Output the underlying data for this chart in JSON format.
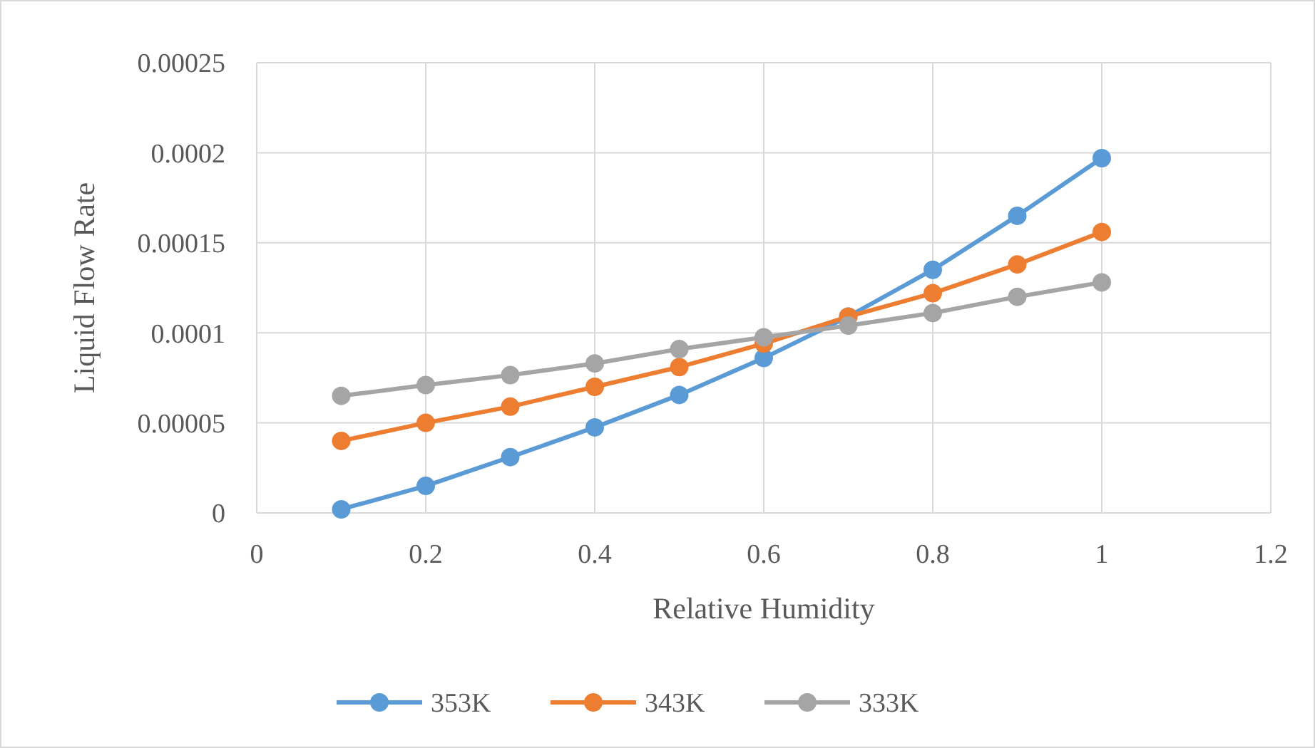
{
  "chart_data": {
    "type": "line",
    "xlabel": "Relative Humidity",
    "ylabel": "Liquid Flow Rate",
    "x": [
      0.1,
      0.2,
      0.3,
      0.4,
      0.5,
      0.6,
      0.7,
      0.8,
      0.9,
      1.0
    ],
    "series": [
      {
        "name": "353K",
        "color": "#5b9bd5",
        "values": [
          2e-06,
          1.5e-05,
          3.1e-05,
          4.75e-05,
          6.55e-05,
          8.6e-05,
          0.000109,
          0.000135,
          0.000165,
          0.000197
        ]
      },
      {
        "name": "343K",
        "color": "#ed7d31",
        "values": [
          4e-05,
          5e-05,
          5.9e-05,
          7e-05,
          8.1e-05,
          9.4e-05,
          0.000109,
          0.000122,
          0.000138,
          0.000156
        ]
      },
      {
        "name": "333K",
        "color": "#a5a5a5",
        "values": [
          6.5e-05,
          7.1e-05,
          7.65e-05,
          8.3e-05,
          9.1e-05,
          9.75e-05,
          0.000104,
          0.000111,
          0.00012,
          0.000128
        ]
      }
    ],
    "xlim": [
      0,
      1.2
    ],
    "xticks": [
      0,
      0.2,
      0.4,
      0.6,
      0.8,
      1,
      1.2
    ],
    "ylim": [
      0,
      0.00025
    ],
    "yticks": [
      {
        "value": 0,
        "label": "0"
      },
      {
        "value": 5e-05,
        "label": "0.00005"
      },
      {
        "value": 0.0001,
        "label": "0.0001"
      },
      {
        "value": 0.00015,
        "label": "0.00015"
      },
      {
        "value": 0.0002,
        "label": "0.0002"
      },
      {
        "value": 0.00025,
        "label": "0.00025"
      }
    ],
    "grid": true,
    "legend": "bottom",
    "marker": "circle",
    "line_style": "solid"
  }
}
